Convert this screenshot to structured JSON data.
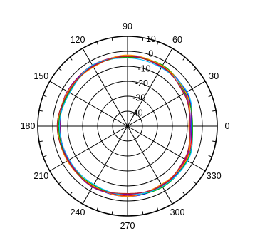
{
  "chart_data": {
    "type": "polar",
    "title": "",
    "angle_unit": "degrees",
    "angle_ticks": [
      "0",
      "30",
      "60",
      "90",
      "120",
      "150",
      "180",
      "210",
      "240",
      "270",
      "300",
      "330"
    ],
    "angle_tick_values": [
      0,
      30,
      60,
      90,
      120,
      150,
      180,
      210,
      240,
      270,
      300,
      330
    ],
    "radial_ticks": [
      "10",
      "0",
      "-10",
      "-20",
      "-30",
      "-40"
    ],
    "radial_tick_values": [
      10,
      0,
      -10,
      -20,
      -30,
      -40
    ],
    "rlim": [
      -50,
      10
    ],
    "grid": true,
    "series": [
      {
        "color": "#0000ff",
        "points": [
          [
            0,
            -7.5
          ],
          [
            30,
            -4.5
          ],
          [
            60,
            -3.5
          ],
          [
            90,
            -3
          ],
          [
            120,
            -3.5
          ],
          [
            150,
            -4.5
          ],
          [
            180,
            -4
          ],
          [
            210,
            -4.5
          ],
          [
            240,
            -3.5
          ],
          [
            270,
            -3
          ],
          [
            300,
            -3.5
          ],
          [
            330,
            -4.5
          ]
        ]
      },
      {
        "color": "#ff0000",
        "points": [
          [
            0,
            -7
          ],
          [
            30,
            -5
          ],
          [
            60,
            -4
          ],
          [
            90,
            -3.5
          ],
          [
            120,
            -3
          ],
          [
            150,
            -4
          ],
          [
            180,
            -4.5
          ],
          [
            210,
            -5
          ],
          [
            240,
            -4
          ],
          [
            270,
            -3.5
          ],
          [
            300,
            -4
          ],
          [
            330,
            -5
          ]
        ]
      },
      {
        "color": "#00aa00",
        "points": [
          [
            0,
            -6.5
          ],
          [
            30,
            -5.5
          ],
          [
            60,
            -3
          ],
          [
            90,
            -4
          ],
          [
            120,
            -4
          ],
          [
            150,
            -5
          ],
          [
            180,
            -4
          ],
          [
            210,
            -4
          ],
          [
            240,
            -4.5
          ],
          [
            270,
            -4
          ],
          [
            300,
            -3
          ],
          [
            330,
            -4
          ]
        ]
      },
      {
        "color": "#8b008b",
        "points": [
          [
            0,
            -8
          ],
          [
            30,
            -6
          ],
          [
            60,
            -4.5
          ],
          [
            90,
            -3
          ],
          [
            120,
            -3.5
          ],
          [
            150,
            -3.5
          ],
          [
            180,
            -5
          ],
          [
            210,
            -4.5
          ],
          [
            240,
            -3
          ],
          [
            270,
            -4.5
          ],
          [
            300,
            -4.5
          ],
          [
            330,
            -5.5
          ]
        ]
      },
      {
        "color": "#ff8c00",
        "points": [
          [
            0,
            -9
          ],
          [
            30,
            -5
          ],
          [
            60,
            -3.5
          ],
          [
            90,
            -2.5
          ],
          [
            120,
            -4.5
          ],
          [
            150,
            -4
          ],
          [
            180,
            -3.5
          ],
          [
            210,
            -3.5
          ],
          [
            240,
            -4
          ],
          [
            270,
            -3
          ],
          [
            300,
            -5
          ],
          [
            330,
            -4.5
          ]
        ]
      },
      {
        "color": "#00bfff",
        "points": [
          [
            0,
            -7
          ],
          [
            30,
            -4
          ],
          [
            60,
            -5
          ],
          [
            90,
            -4.5
          ],
          [
            120,
            -3
          ],
          [
            150,
            -5.5
          ],
          [
            180,
            -4.5
          ],
          [
            210,
            -5
          ],
          [
            240,
            -5
          ],
          [
            270,
            -4
          ],
          [
            300,
            -3.5
          ],
          [
            330,
            -3.5
          ]
        ]
      },
      {
        "color": "#b22222",
        "points": [
          [
            0,
            -8.5
          ],
          [
            30,
            -6.5
          ],
          [
            60,
            -4
          ],
          [
            90,
            -3.5
          ],
          [
            120,
            -4
          ],
          [
            150,
            -4.5
          ],
          [
            180,
            -3
          ],
          [
            210,
            -4
          ],
          [
            240,
            -3.5
          ],
          [
            270,
            -5
          ],
          [
            300,
            -4
          ],
          [
            330,
            -6
          ]
        ]
      }
    ]
  }
}
